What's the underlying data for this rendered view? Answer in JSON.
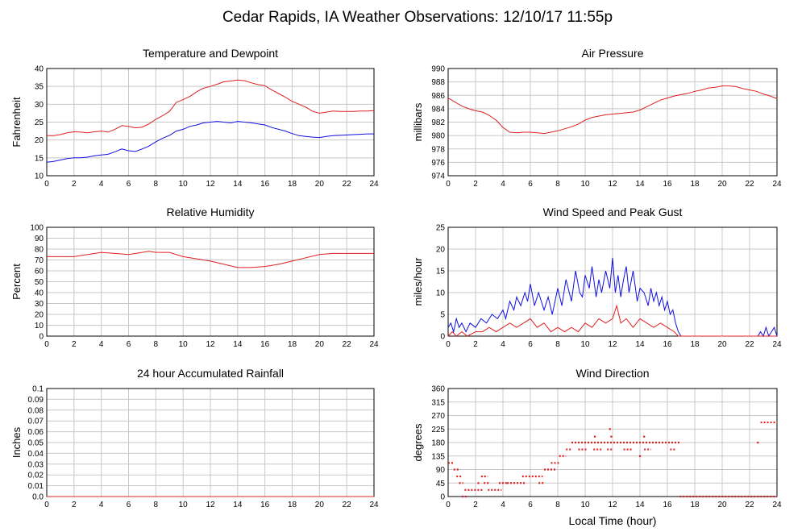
{
  "title": "Cedar Rapids, IA Weather Observations: 12/10/17 11:55p",
  "x_axis_label": "Local Time (hour)",
  "x_ticks": [
    0,
    2,
    4,
    6,
    8,
    10,
    12,
    14,
    16,
    18,
    20,
    22,
    24
  ],
  "colors": {
    "red_series": "#e02020",
    "blue_series": "#1010e0",
    "grid": "#c8c8c8"
  },
  "chart_data": [
    {
      "id": "temp",
      "type": "line",
      "title": "Temperature and Dewpoint",
      "ylabel": "Fahrenheit",
      "xlim": [
        0,
        24
      ],
      "ylim": [
        10,
        40
      ],
      "yticks": [
        "10",
        "15",
        "20",
        "25",
        "30",
        "35",
        "40"
      ],
      "series": [
        {
          "color": "red",
          "x": [
            0,
            0.5,
            1,
            1.5,
            2,
            2.5,
            3,
            3.5,
            4,
            4.5,
            5,
            5.5,
            6,
            6.5,
            7,
            7.5,
            8,
            8.5,
            9,
            9.5,
            10,
            10.5,
            11,
            11.5,
            12,
            12.5,
            13,
            13.5,
            14,
            14.5,
            15,
            15.5,
            16,
            16.5,
            17,
            17.5,
            18,
            18.5,
            19,
            19.5,
            20,
            20.5,
            21,
            21.5,
            22,
            22.5,
            23,
            23.5,
            24
          ],
          "y": [
            21.2,
            21.2,
            21.5,
            22.0,
            22.3,
            22.2,
            22.0,
            22.3,
            22.5,
            22.2,
            23.0,
            24.0,
            23.8,
            23.4,
            23.6,
            24.5,
            25.8,
            26.8,
            28.0,
            30.5,
            31.3,
            32.2,
            33.5,
            34.5,
            35.0,
            35.6,
            36.3,
            36.5,
            36.8,
            36.6,
            36.0,
            35.5,
            35.2,
            34.0,
            33.0,
            32.0,
            30.8,
            30.0,
            29.2,
            28.0,
            27.5,
            27.8,
            28.1,
            28.0,
            28.0,
            28.0,
            28.1,
            28.1,
            28.2
          ]
        },
        {
          "color": "blue",
          "x": [
            0,
            0.5,
            1,
            1.5,
            2,
            2.5,
            3,
            3.5,
            4,
            4.5,
            5,
            5.5,
            6,
            6.5,
            7,
            7.5,
            8,
            8.5,
            9,
            9.5,
            10,
            10.5,
            11,
            11.5,
            12,
            12.5,
            13,
            13.5,
            14,
            14.5,
            15,
            15.5,
            16,
            16.5,
            17,
            17.5,
            18,
            18.5,
            19,
            19.5,
            20,
            20.5,
            21,
            21.5,
            22,
            22.5,
            23,
            23.5,
            24
          ],
          "y": [
            13.8,
            14.0,
            14.4,
            14.8,
            15.0,
            15.0,
            15.2,
            15.6,
            15.8,
            16.0,
            16.7,
            17.5,
            17.0,
            16.8,
            17.5,
            18.3,
            19.5,
            20.5,
            21.3,
            22.5,
            23.0,
            23.8,
            24.2,
            24.8,
            25.0,
            25.2,
            25.0,
            24.8,
            25.2,
            25.0,
            24.8,
            24.5,
            24.2,
            23.5,
            23.0,
            22.5,
            21.8,
            21.2,
            21.0,
            20.8,
            20.7,
            21.0,
            21.2,
            21.3,
            21.4,
            21.5,
            21.6,
            21.7,
            21.7
          ]
        }
      ]
    },
    {
      "id": "pressure",
      "type": "line",
      "title": "Air Pressure",
      "ylabel": "millibars",
      "xlim": [
        0,
        24
      ],
      "ylim": [
        974,
        990
      ],
      "yticks": [
        "974",
        "976",
        "978",
        "980",
        "982",
        "984",
        "986",
        "988",
        "990"
      ],
      "series": [
        {
          "color": "red",
          "x": [
            0,
            0.5,
            1,
            1.5,
            2,
            2.5,
            3,
            3.5,
            4,
            4.5,
            5,
            5.5,
            6,
            6.5,
            7,
            7.5,
            8,
            8.5,
            9,
            9.5,
            10,
            10.5,
            11,
            11.5,
            12,
            12.5,
            13,
            13.5,
            14,
            14.5,
            15,
            15.5,
            16,
            16.5,
            17,
            17.5,
            18,
            18.5,
            19,
            19.5,
            20,
            20.5,
            21,
            21.5,
            22,
            22.5,
            23,
            23.5,
            24
          ],
          "y": [
            985.6,
            985.0,
            984.4,
            984.0,
            983.7,
            983.5,
            983.0,
            982.3,
            981.2,
            980.5,
            980.4,
            980.5,
            980.5,
            980.4,
            980.3,
            980.5,
            980.7,
            981.0,
            981.3,
            981.7,
            982.3,
            982.7,
            982.9,
            983.1,
            983.2,
            983.3,
            983.4,
            983.5,
            983.8,
            984.3,
            984.8,
            985.3,
            985.6,
            985.9,
            986.1,
            986.3,
            986.6,
            986.8,
            987.1,
            987.2,
            987.4,
            987.4,
            987.3,
            987.0,
            986.8,
            986.6,
            986.2,
            985.9,
            985.5
          ]
        }
      ]
    },
    {
      "id": "humidity",
      "type": "line",
      "title": "Relative Humidity",
      "ylabel": "Percent",
      "xlim": [
        0,
        24
      ],
      "ylim": [
        0,
        100
      ],
      "yticks": [
        "0",
        "10",
        "20",
        "30",
        "40",
        "50",
        "60",
        "70",
        "80",
        "90",
        "100"
      ],
      "series": [
        {
          "color": "red",
          "x": [
            0,
            1,
            2,
            3,
            4,
            5,
            6,
            7,
            7.5,
            8,
            9,
            10,
            11,
            12,
            13,
            14,
            15,
            16,
            17,
            18,
            19,
            20,
            21,
            22,
            23,
            24
          ],
          "y": [
            73,
            73,
            73,
            75,
            77,
            76,
            75,
            77,
            78,
            77,
            77,
            73,
            71,
            69,
            66,
            63,
            63,
            64,
            66,
            69,
            72,
            75,
            76,
            76,
            76,
            76
          ]
        }
      ]
    },
    {
      "id": "wind",
      "type": "line",
      "title": "Wind Speed and Peak Gust",
      "ylabel": "miles/hour",
      "xlim": [
        0,
        24
      ],
      "ylim": [
        0,
        25
      ],
      "yticks": [
        "0",
        "5",
        "10",
        "15",
        "20",
        "25"
      ],
      "series": [
        {
          "color": "blue",
          "x": [
            0,
            0.2,
            0.4,
            0.6,
            0.8,
            1,
            1.3,
            1.6,
            2,
            2.4,
            2.8,
            3.2,
            3.6,
            4,
            4.2,
            4.5,
            4.8,
            5,
            5.3,
            5.6,
            5.8,
            6,
            6.3,
            6.6,
            7,
            7.3,
            7.6,
            8,
            8.3,
            8.6,
            9,
            9.3,
            9.6,
            9.8,
            10,
            10.3,
            10.5,
            10.8,
            11,
            11.2,
            11.5,
            11.8,
            12,
            12.2,
            12.4,
            12.6,
            12.8,
            13,
            13.2,
            13.5,
            13.8,
            14,
            14.3,
            14.6,
            14.8,
            15,
            15.2,
            15.4,
            15.6,
            15.8,
            16,
            16.2,
            16.4,
            16.6,
            16.8,
            17,
            18,
            19,
            20,
            21,
            22,
            22.6,
            22.8,
            23,
            23.2,
            23.4,
            23.6,
            23.8,
            24
          ],
          "y": [
            2,
            3,
            1,
            4,
            2,
            3,
            1,
            3,
            2,
            4,
            3,
            5,
            4,
            6,
            4,
            8,
            6,
            9,
            7,
            10,
            8,
            12,
            7,
            10,
            6,
            9,
            5,
            11,
            7,
            13,
            8,
            15,
            10,
            9,
            14,
            11,
            16,
            9,
            13,
            10,
            15,
            11,
            18,
            10,
            14,
            9,
            13,
            16,
            10,
            15,
            8,
            11,
            10,
            7,
            11,
            8,
            10,
            7,
            9,
            6,
            8,
            5,
            6,
            3,
            1,
            0,
            0,
            0,
            0,
            0,
            0,
            0,
            1,
            0,
            2,
            0,
            1,
            2,
            0
          ]
        },
        {
          "color": "red",
          "x": [
            0,
            0.3,
            0.6,
            1,
            1.4,
            2,
            2.5,
            3,
            3.5,
            4,
            4.5,
            5,
            5.5,
            6,
            6.5,
            7,
            7.5,
            8,
            8.5,
            9,
            9.5,
            10,
            10.5,
            11,
            11.5,
            12,
            12.3,
            12.6,
            13,
            13.5,
            14,
            14.5,
            15,
            15.5,
            16,
            16.5,
            16.8,
            17,
            24
          ],
          "y": [
            0,
            1,
            0,
            1,
            0,
            1,
            1,
            2,
            1,
            2,
            3,
            2,
            3,
            4,
            2,
            3,
            1,
            2,
            1,
            2,
            1,
            3,
            2,
            4,
            3,
            4,
            7,
            3,
            4,
            2,
            4,
            3,
            2,
            3,
            2,
            1,
            0,
            0,
            0
          ]
        }
      ]
    },
    {
      "id": "rain",
      "type": "line",
      "title": "24 hour Accumulated Rainfall",
      "ylabel": "Inches",
      "xlim": [
        0,
        24
      ],
      "ylim": [
        0,
        0.1
      ],
      "yticks": [
        "0.0",
        "0.01",
        "0.02",
        "0.03",
        "0.04",
        "0.05",
        "0.06",
        "0.07",
        "0.08",
        "0.09",
        "0.1"
      ],
      "series": [
        {
          "color": "red",
          "x": [
            0,
            24
          ],
          "y": [
            0,
            0
          ]
        }
      ]
    },
    {
      "id": "direction",
      "type": "scatter",
      "title": "Wind Direction",
      "ylabel": "degrees",
      "xlim": [
        0,
        24
      ],
      "ylim": [
        0,
        360
      ],
      "yticks": [
        "0",
        "45",
        "90",
        "135",
        "180",
        "225",
        "270",
        "315",
        "360"
      ],
      "segments": [
        {
          "x0": 0.0,
          "x1": 0.4,
          "y": 112
        },
        {
          "x0": 0.4,
          "x1": 0.8,
          "y": 90
        },
        {
          "x0": 0.6,
          "x1": 1.0,
          "y": 67
        },
        {
          "x0": 0.8,
          "x1": 1.1,
          "y": 45
        },
        {
          "x0": 1.0,
          "x1": 1.4,
          "y": 0
        },
        {
          "x0": 1.2,
          "x1": 2.6,
          "y": 22
        },
        {
          "x0": 2.6,
          "x1": 3.0,
          "y": 45
        },
        {
          "x0": 2.4,
          "x1": 2.9,
          "y": 67
        },
        {
          "x0": 2.9,
          "x1": 3.9,
          "y": 22
        },
        {
          "x0": 3.7,
          "x1": 4.3,
          "y": 45
        },
        {
          "x0": 4.3,
          "x1": 5.6,
          "y": 45
        },
        {
          "x0": 5.4,
          "x1": 6.9,
          "y": 67
        },
        {
          "x0": 6.6,
          "x1": 7.0,
          "y": 45
        },
        {
          "x0": 7.0,
          "x1": 7.9,
          "y": 90
        },
        {
          "x0": 7.5,
          "x1": 8.2,
          "y": 112
        },
        {
          "x0": 8.1,
          "x1": 8.6,
          "y": 135
        },
        {
          "x0": 8.6,
          "x1": 9.0,
          "y": 157
        },
        {
          "x0": 9.0,
          "x1": 16.9,
          "y": 180
        },
        {
          "x0": 9.5,
          "x1": 10.2,
          "y": 157
        },
        {
          "x0": 10.6,
          "x1": 11.2,
          "y": 157
        },
        {
          "x0": 11.6,
          "x1": 12.0,
          "y": 157
        },
        {
          "x0": 12.8,
          "x1": 13.4,
          "y": 157
        },
        {
          "x0": 14.3,
          "x1": 14.8,
          "y": 157
        },
        {
          "x0": 16.2,
          "x1": 16.6,
          "y": 157
        },
        {
          "x0": 16.9,
          "x1": 24.0,
          "y": 0
        },
        {
          "x0": 22.8,
          "x1": 24.0,
          "y": 247
        }
      ],
      "points": [
        {
          "x": 2.2,
          "y": 45
        },
        {
          "x": 10.7,
          "y": 200
        },
        {
          "x": 11.8,
          "y": 225
        },
        {
          "x": 11.9,
          "y": 200
        },
        {
          "x": 14.0,
          "y": 135
        },
        {
          "x": 14.3,
          "y": 200
        },
        {
          "x": 22.6,
          "y": 180
        }
      ]
    }
  ]
}
